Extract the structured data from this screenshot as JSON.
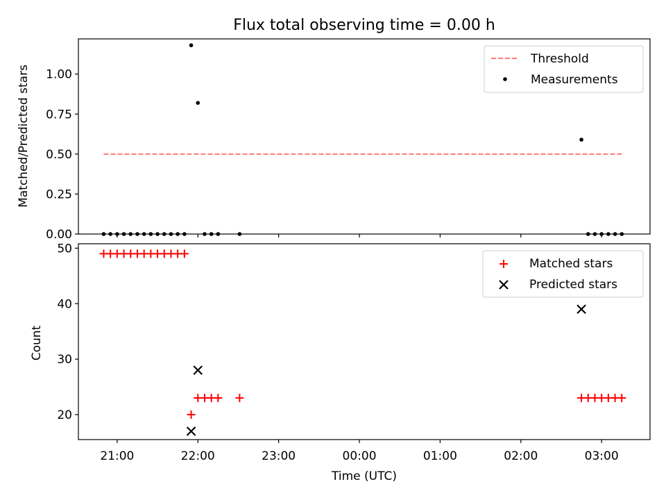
{
  "title": "Flux total observing time = 0.00 h",
  "xlabel": "Time (UTC)",
  "x_ticks": [
    "21:00",
    "22:00",
    "23:00",
    "00:00",
    "01:00",
    "02:00",
    "03:00"
  ],
  "chart_data": [
    {
      "type": "scatter",
      "panel": "top",
      "ylabel": "Matched/Predicted stars",
      "ylim": [
        0,
        1.22
      ],
      "y_ticks": [
        "0.00",
        "0.25",
        "0.50",
        "0.75",
        "1.00"
      ],
      "legend_position": "top-right",
      "series": [
        {
          "name": "Threshold",
          "kind": "line",
          "style": "dashed",
          "color": "#ff7777",
          "x": [
            "20:50",
            "03:15"
          ],
          "y": [
            0.5,
            0.5
          ]
        },
        {
          "name": "Measurements",
          "kind": "points",
          "color": "#000000",
          "x": [
            "20:50",
            "20:55",
            "21:00",
            "21:05",
            "21:10",
            "21:15",
            "21:20",
            "21:25",
            "21:30",
            "21:35",
            "21:40",
            "21:45",
            "21:50",
            "21:55",
            "22:00",
            "22:05",
            "22:10",
            "22:15",
            "22:31",
            "02:45",
            "02:50",
            "02:55",
            "03:00",
            "03:05",
            "03:10",
            "03:15"
          ],
          "y": [
            0,
            0,
            0,
            0,
            0,
            0,
            0,
            0,
            0,
            0,
            0,
            0,
            0,
            1.18,
            0.82,
            0,
            0,
            0,
            0,
            0.59,
            0,
            0,
            0,
            0,
            0,
            0
          ]
        }
      ]
    },
    {
      "type": "scatter",
      "panel": "bottom",
      "ylabel": "Count",
      "ylim": [
        15.5,
        50.8
      ],
      "y_ticks": [
        "20",
        "30",
        "40",
        "50"
      ],
      "legend_position": "top-right",
      "series": [
        {
          "name": "Matched stars",
          "marker": "plus",
          "color": "#ff0000",
          "x": [
            "20:50",
            "20:55",
            "21:00",
            "21:05",
            "21:10",
            "21:15",
            "21:20",
            "21:25",
            "21:30",
            "21:35",
            "21:40",
            "21:45",
            "21:50",
            "21:55",
            "22:00",
            "22:05",
            "22:10",
            "22:15",
            "22:31",
            "02:45",
            "02:50",
            "02:55",
            "03:00",
            "03:05",
            "03:10",
            "03:15"
          ],
          "y": [
            49,
            49,
            49,
            49,
            49,
            49,
            49,
            49,
            49,
            49,
            49,
            49,
            49,
            20,
            23,
            23,
            23,
            23,
            23,
            23,
            23,
            23,
            23,
            23,
            23,
            23
          ]
        },
        {
          "name": "Predicted stars",
          "marker": "x",
          "color": "#000000",
          "x": [
            "21:55",
            "22:00",
            "02:45"
          ],
          "y": [
            17,
            28,
            39
          ]
        }
      ]
    }
  ]
}
